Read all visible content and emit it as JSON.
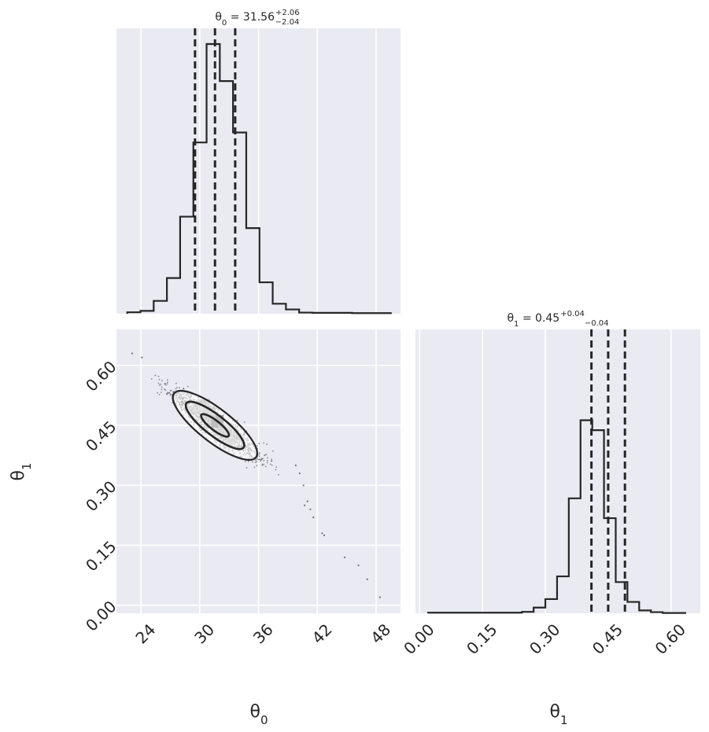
{
  "chart_data": [
    {
      "type": "histogram",
      "panel": "theta0-marginal",
      "title": {
        "prefix": "θ",
        "sub": "0",
        "text": " = 31.56",
        "sup": "+2.06",
        "low": "−2.04"
      },
      "xlim": [
        21.5,
        50.5
      ],
      "bins": [
        22.6,
        23.95,
        25.3,
        26.65,
        28.0,
        29.35,
        30.7,
        32.05,
        33.4,
        34.75,
        36.1,
        37.45,
        38.8,
        40.15,
        41.5,
        42.85,
        44.2,
        45.55,
        46.9,
        48.25,
        49.6
      ],
      "counts": [
        0.005,
        0.01,
        0.045,
        0.125,
        0.34,
        0.6,
        0.945,
        0.815,
        0.635,
        0.3,
        0.11,
        0.035,
        0.015,
        0.004,
        0.003,
        0.003,
        0.003,
        0.002,
        0.002,
        0.002
      ],
      "quantiles": [
        29.52,
        31.56,
        33.62
      ],
      "xticks": [
        "24",
        "30",
        "36",
        "42",
        "48"
      ],
      "tick_values": [
        24,
        30,
        36,
        42,
        48
      ]
    },
    {
      "type": "histogram",
      "panel": "theta1-marginal",
      "title": {
        "prefix": "θ",
        "sub": "1",
        "text": " = 0.45",
        "sup": "+0.04",
        "low": "−0.04"
      },
      "xlim": [
        -0.01,
        0.67
      ],
      "bins": [
        0.02,
        0.048,
        0.076,
        0.104,
        0.132,
        0.16,
        0.188,
        0.216,
        0.244,
        0.272,
        0.3,
        0.328,
        0.356,
        0.384,
        0.412,
        0.44,
        0.468,
        0.496,
        0.524,
        0.552,
        0.58,
        0.608,
        0.636
      ],
      "counts": [
        0.002,
        0.002,
        0.002,
        0.002,
        0.002,
        0.002,
        0.002,
        0.002,
        0.005,
        0.02,
        0.05,
        0.13,
        0.405,
        0.68,
        0.645,
        0.335,
        0.11,
        0.04,
        0.01,
        0.004,
        0.001,
        0.001
      ],
      "quantiles": [
        0.41,
        0.45,
        0.49
      ],
      "xticks": [
        "0.00",
        "0.15",
        "0.30",
        "0.45",
        "0.60"
      ],
      "tick_values": [
        0,
        0.15,
        0.3,
        0.45,
        0.6
      ],
      "xlabel": {
        "prefix": "θ",
        "sub": "1"
      }
    },
    {
      "type": "scatter",
      "panel": "joint-theta0-theta1",
      "xlim": [
        21.5,
        50.5
      ],
      "ylim": [
        -0.02,
        0.69
      ],
      "xticks": [
        "24",
        "30",
        "36",
        "42",
        "48"
      ],
      "x_tick_values": [
        24,
        30,
        36,
        42,
        48
      ],
      "yticks": [
        "0.00",
        "0.15",
        "0.30",
        "0.45",
        "0.60"
      ],
      "y_tick_values": [
        0,
        0.15,
        0.3,
        0.45,
        0.6
      ],
      "xlabel": {
        "prefix": "θ",
        "sub": "0"
      },
      "ylabel": {
        "prefix": "θ",
        "sub": "1"
      },
      "center": [
        31.56,
        0.45
      ],
      "outliers": [
        [
          39.8,
          0.35
        ],
        [
          40.2,
          0.33
        ],
        [
          40.6,
          0.3
        ],
        [
          41.0,
          0.26
        ],
        [
          40.7,
          0.25
        ],
        [
          41.3,
          0.24
        ],
        [
          41.6,
          0.22
        ],
        [
          42.5,
          0.18
        ],
        [
          42.7,
          0.175
        ],
        [
          44.8,
          0.12
        ],
        [
          46.2,
          0.1
        ],
        [
          47.1,
          0.065
        ],
        [
          48.4,
          0.02
        ],
        [
          24.1,
          0.62
        ],
        [
          23.1,
          0.63
        ]
      ],
      "density_cells": [
        [
          31.8,
          0.46
        ],
        [
          31.0,
          0.48
        ],
        [
          32.5,
          0.44
        ],
        [
          30.4,
          0.5
        ],
        [
          33.1,
          0.42
        ]
      ]
    }
  ],
  "colors": {
    "panel_bg": "#eaeaf2",
    "grid": "#ffffff",
    "ink": "#262626",
    "points": "#3a3a3a"
  }
}
